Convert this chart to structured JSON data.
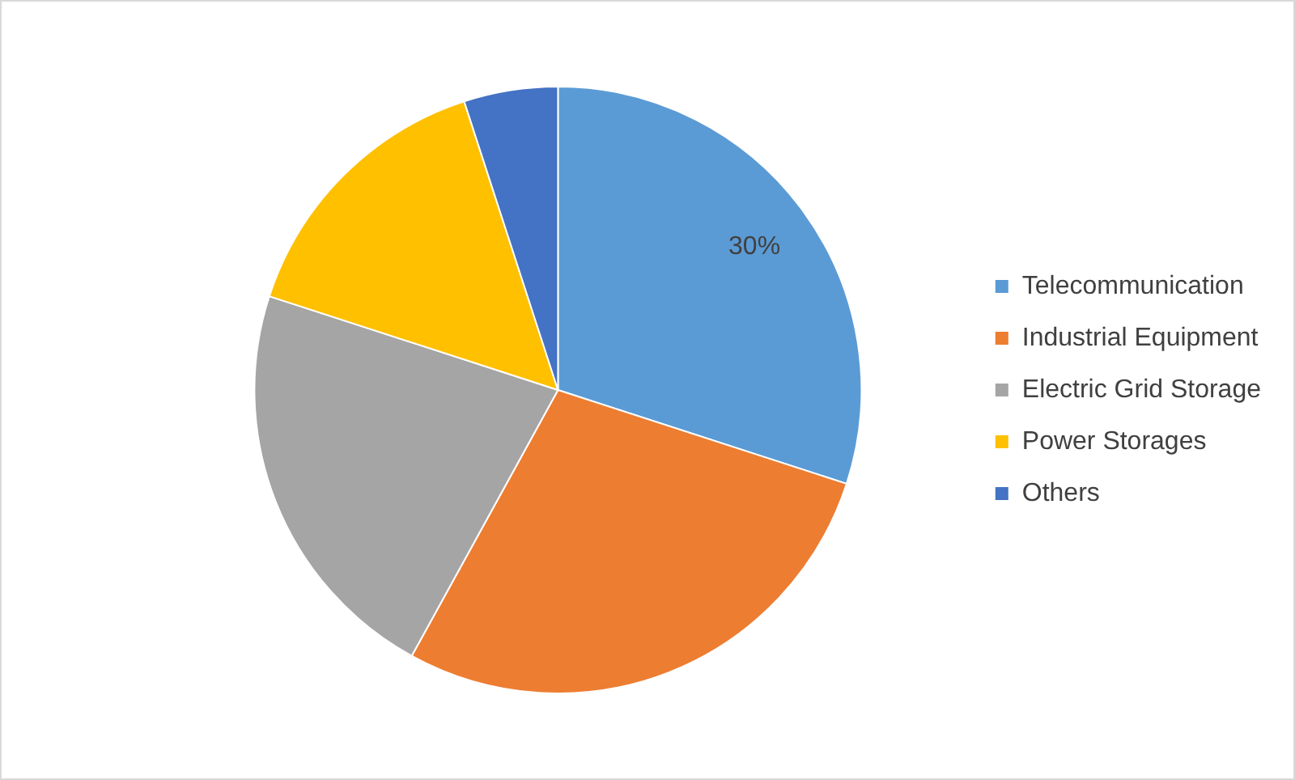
{
  "chart_data": {
    "type": "pie",
    "categories": [
      "Telecommunication",
      "Industrial Equipment",
      "Electric Grid Storage",
      "Power Storages",
      "Others"
    ],
    "values": [
      30,
      28,
      22,
      15,
      5
    ],
    "colors": [
      "#5b9bd5",
      "#ed7d31",
      "#a5a5a5",
      "#ffc000",
      "#4472c4"
    ],
    "value_labels": [
      "30%",
      null,
      null,
      null,
      null
    ],
    "legend": "right"
  }
}
